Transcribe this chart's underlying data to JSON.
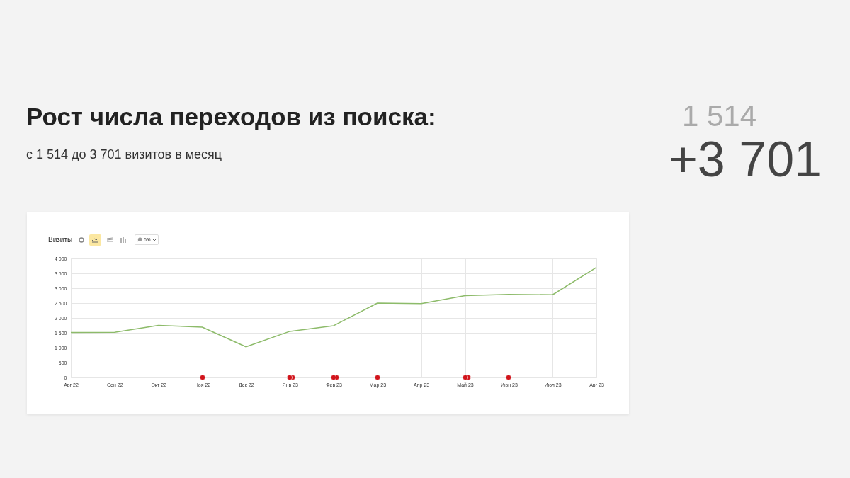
{
  "chart_data": {
    "type": "line",
    "title": "Рост числа переходов из поиска:",
    "subtitle": "с 1 514 до 3 701 визитов в месяц",
    "ylabel": "Визиты",
    "annotations": [
      "1 514",
      "+3 701",
      "6/6"
    ],
    "categories": [
      "Авг 22",
      "Сен 22",
      "Окт 22",
      "Ноя 22",
      "Дек 22",
      "Янв 23",
      "Фев 23",
      "Мар 23",
      "Апр 23",
      "Май 23",
      "Июн 23",
      "Июл 23",
      "Авг 23"
    ],
    "series": [
      {
        "color": "#8dbb6a",
        "values": [
          1514,
          1520,
          1750,
          1690,
          1030,
          1550,
          1740,
          2500,
          2480,
          2750,
          2790,
          2780,
          3701
        ]
      }
    ],
    "ylim": [
      0,
      4000
    ],
    "yticks": [
      0,
      {
        "value": 500,
        "label": "500"
      },
      {
        "value": 1000,
        "label": "1 000"
      },
      {
        "value": 1500,
        "label": "1 500"
      },
      {
        "value": 2000,
        "label": "2 000"
      },
      {
        "value": 2500,
        "label": "2 500"
      },
      {
        "value": 3000,
        "label": "3 000"
      },
      {
        "value": 3500,
        "label": "3 500"
      },
      {
        "value": 4000,
        "label": "4 000"
      }
    ],
    "grid": true,
    "marker": "none",
    "line_style": "solid"
  }
}
